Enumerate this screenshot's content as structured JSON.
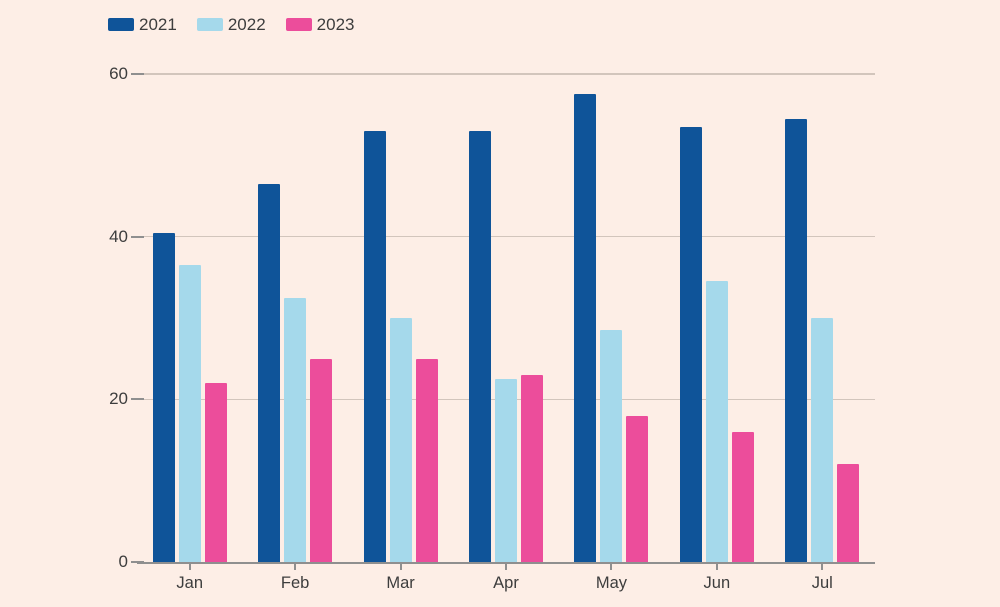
{
  "colors": {
    "background": "#fdeee6",
    "grid_line": "#d2c5bc",
    "axis_line": "#8f8f8f",
    "text": "#3d3d3d"
  },
  "chart_data": {
    "type": "bar",
    "title": "",
    "xlabel": "",
    "ylabel": "",
    "categories": [
      "Jan",
      "Feb",
      "Mar",
      "Apr",
      "May",
      "Jun",
      "Jul"
    ],
    "series": [
      {
        "name": "2021",
        "color": "#0f5499",
        "values": [
          40.5,
          46.5,
          53,
          53,
          57.5,
          53.5,
          54.5
        ]
      },
      {
        "name": "2022",
        "color": "#a5d9eb",
        "values": [
          36.5,
          32.5,
          30,
          22.5,
          28.5,
          34.5,
          30
        ]
      },
      {
        "name": "2023",
        "color": "#ec4d9b",
        "values": [
          22,
          25,
          25,
          23,
          18,
          16,
          12
        ]
      }
    ],
    "ylim": [
      0,
      60
    ],
    "yticks": [
      0,
      20,
      40,
      60
    ],
    "grid": true,
    "legend_position": "top-left"
  }
}
